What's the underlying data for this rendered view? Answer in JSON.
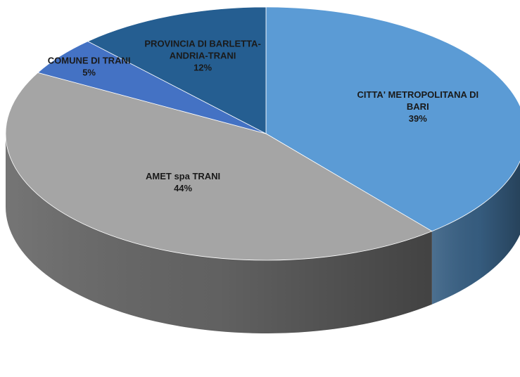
{
  "chart_data": {
    "type": "pie",
    "title": "",
    "slices": [
      {
        "label_lines": [
          "CITTA' METROPOLITANA DI",
          "BARI"
        ],
        "value": 39,
        "value_label": "39%",
        "color": "#5b9bd5"
      },
      {
        "label_lines": [
          "AMET spa TRANI"
        ],
        "value": 44,
        "value_label": "44%",
        "color": "#a5a5a5"
      },
      {
        "label_lines": [
          "COMUNE DI TRANI"
        ],
        "value": 5,
        "value_label": "5%",
        "color": "#4472c4"
      },
      {
        "label_lines": [
          "PROVINCIA DI BARLETTA-",
          "ANDRIA-TRANI"
        ],
        "value": 12,
        "value_label": "12%",
        "color": "#255e91"
      }
    ],
    "legend": "none",
    "style": "3d-pie"
  }
}
